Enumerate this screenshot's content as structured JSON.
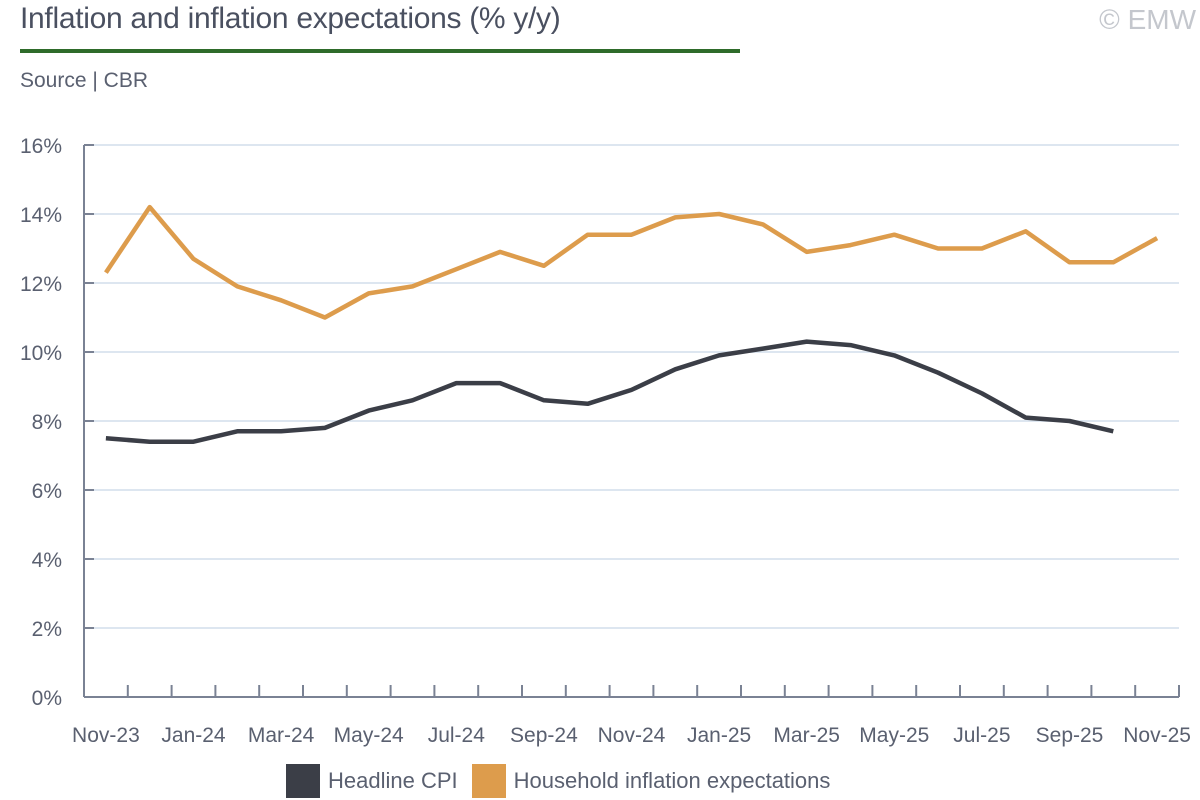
{
  "header": {
    "title": "Inflation and inflation expectations (% y/y)",
    "source": "Source | CBR",
    "copyright": "© EMW"
  },
  "colors": {
    "cpi": "#3b3e47",
    "expectations": "#dd9c4c",
    "grid": "#dde6f0",
    "axis": "#7a8294",
    "title_rule": "#2e6b2a"
  },
  "chart_data": {
    "type": "line",
    "title": "Inflation and inflation expectations (% y/y)",
    "xlabel": "",
    "ylabel": "",
    "ylim": [
      0,
      16
    ],
    "y_ticks": [
      0,
      2,
      4,
      6,
      8,
      10,
      12,
      14,
      16
    ],
    "y_tick_labels": [
      "0%",
      "2%",
      "4%",
      "6%",
      "8%",
      "10%",
      "12%",
      "14%",
      "16%"
    ],
    "grid": true,
    "legend_position": "bottom-center",
    "x": [
      "Nov-23",
      "Dec-23",
      "Jan-24",
      "Feb-24",
      "Mar-24",
      "Apr-24",
      "May-24",
      "Jun-24",
      "Jul-24",
      "Aug-24",
      "Sep-24",
      "Oct-24",
      "Nov-24",
      "Dec-24",
      "Jan-25",
      "Feb-25",
      "Mar-25",
      "Apr-25",
      "May-25",
      "Jun-25",
      "Jul-25",
      "Aug-25",
      "Sep-25",
      "Oct-25",
      "Nov-25"
    ],
    "x_tick_labels": [
      "Nov-23",
      "Jan-24",
      "Mar-24",
      "May-24",
      "Jul-24",
      "Sep-24",
      "Nov-24",
      "Jan-25",
      "Mar-25",
      "May-25",
      "Jul-25",
      "Sep-25",
      "Nov-25"
    ],
    "series": [
      {
        "name": "Headline CPI",
        "values": [
          7.5,
          7.4,
          7.4,
          7.7,
          7.7,
          7.8,
          8.3,
          8.6,
          9.1,
          9.1,
          8.6,
          8.5,
          8.9,
          9.5,
          9.9,
          10.1,
          10.3,
          10.2,
          9.9,
          9.4,
          8.8,
          8.1,
          8.0,
          7.7,
          null
        ]
      },
      {
        "name": "Household inflation expectations",
        "values": [
          12.3,
          14.2,
          12.7,
          11.9,
          11.5,
          11.0,
          11.7,
          11.9,
          12.4,
          12.9,
          12.5,
          13.4,
          13.4,
          13.9,
          14.0,
          13.7,
          12.9,
          13.1,
          13.4,
          13.0,
          13.0,
          13.5,
          12.6,
          12.6,
          13.3
        ]
      }
    ]
  }
}
